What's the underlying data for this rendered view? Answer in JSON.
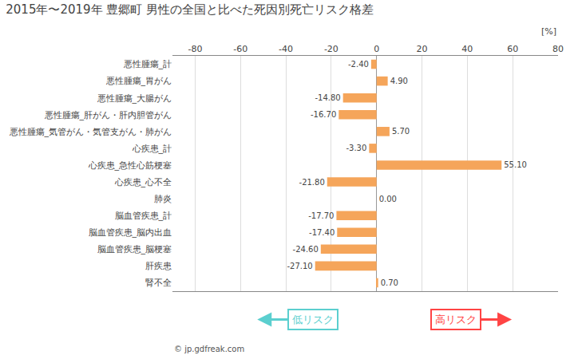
{
  "chart_data": {
    "type": "bar",
    "orientation": "horizontal",
    "title": "2015年〜2019年 豊郷町 男性の全国と比べた死因別死亡リスク格差",
    "xlabel": "[%]",
    "categories": [
      "悪性腫瘍_計",
      "悪性腫瘍_胃がん",
      "悪性腫瘍_大腸がん",
      "悪性腫瘍_肝がん・肝内胆管がん",
      "悪性腫瘍_気管がん・気管支がん・肺がん",
      "心疾患_計",
      "心疾患_急性心筋梗塞",
      "心疾患_心不全",
      "肺炎",
      "脳血管疾患_計",
      "脳血管疾患_脳内出血",
      "脳血管疾患_脳梗塞",
      "肝疾患",
      "腎不全"
    ],
    "values": [
      -2.4,
      4.9,
      -14.8,
      -16.7,
      5.7,
      -3.3,
      55.1,
      -21.8,
      0.0,
      -17.7,
      -17.4,
      -24.6,
      -27.1,
      0.7
    ],
    "value_labels": [
      "-2.40",
      "4.90",
      "-14.80",
      "-16.70",
      "5.70",
      "-3.30",
      "55.10",
      "-21.80",
      "0.00",
      "-17.70",
      "-17.40",
      "-24.60",
      "-27.10",
      "0.70"
    ],
    "color": "#F5A55A",
    "xlim": [
      -90,
      80
    ],
    "xticks": [
      -80,
      -60,
      -40,
      -20,
      0,
      20,
      40,
      60,
      80
    ],
    "grid": true,
    "data_labels": true,
    "annotations": [
      {
        "text": "© jp.gdfreak.com"
      },
      {
        "text": "低リスク",
        "color": "#5BCFCF"
      },
      {
        "text": "高リスク",
        "color": "#FF4444"
      }
    ]
  }
}
